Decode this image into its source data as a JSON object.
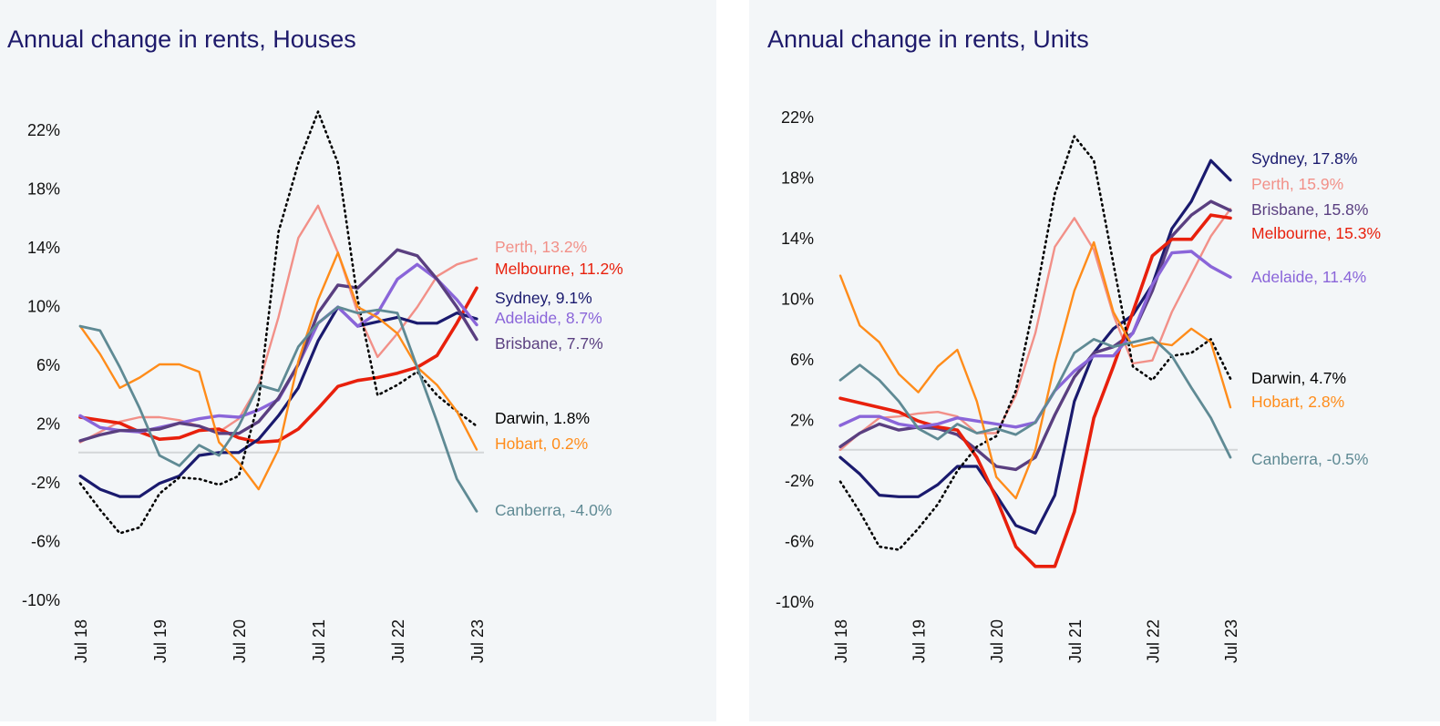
{
  "chart_data": [
    {
      "type": "line",
      "title": "Annual change in rents, Houses",
      "xlabel": "",
      "ylabel": "",
      "ylim": [
        -10,
        22
      ],
      "y_ticks": [
        "22%",
        "18%",
        "14%",
        "10%",
        "6%",
        "2%",
        "-2%",
        "-6%",
        "-10%"
      ],
      "y_tick_values": [
        22,
        18,
        14,
        10,
        6,
        2,
        -2,
        -6,
        -10
      ],
      "x_ticks": [
        "Jul 18",
        "Jul 19",
        "Jul 20",
        "Jul 21",
        "Jul 22",
        "Jul 23"
      ],
      "x_note": "quarterly from Jul 18 to Jul 23",
      "series": [
        {
          "name": "Perth",
          "label": "Perth, 13.2%",
          "color": "#f29088",
          "values": [
            0.7,
            1.4,
            2.1,
            2.4,
            2.4,
            2.2,
            1.8,
            1.4,
            2.3,
            4.6,
            9.2,
            14.6,
            16.8,
            13.6,
            9.5,
            6.5,
            8.1,
            9.9,
            12.0,
            12.8,
            13.2
          ]
        },
        {
          "name": "Melbourne",
          "label": "Melbourne, 11.2%",
          "color": "#e8200c",
          "values": [
            2.4,
            2.2,
            2.0,
            1.4,
            0.9,
            1.0,
            1.5,
            1.6,
            1.0,
            0.7,
            0.8,
            1.6,
            3.0,
            4.5,
            4.9,
            5.1,
            5.4,
            5.8,
            6.6,
            8.8,
            11.2
          ]
        },
        {
          "name": "Sydney",
          "label": "Sydney, 9.1%",
          "color": "#1a1a6e",
          "values": [
            -1.6,
            -2.5,
            -3.0,
            -3.0,
            -2.1,
            -1.6,
            -0.2,
            0,
            0,
            0.9,
            2.5,
            4.4,
            7.6,
            9.9,
            8.6,
            8.9,
            9.2,
            8.8,
            8.8,
            9.5,
            9.1
          ]
        },
        {
          "name": "Adelaide",
          "label": "Adelaide, 8.7%",
          "color": "#8a65d9",
          "values": [
            2.5,
            1.7,
            1.5,
            1.4,
            1.7,
            2.0,
            2.3,
            2.5,
            2.4,
            2.9,
            3.6,
            6.0,
            8.8,
            9.9,
            8.6,
            9.5,
            11.8,
            12.8,
            11.8,
            10.4,
            8.7
          ]
        },
        {
          "name": "Brisbane",
          "label": "Brisbane, 7.7%",
          "color": "#5a3f80",
          "values": [
            0.8,
            1.2,
            1.5,
            1.5,
            1.6,
            2.0,
            1.8,
            1.3,
            1.3,
            2.1,
            3.7,
            6.0,
            9.5,
            11.4,
            11.2,
            12.5,
            13.8,
            13.4,
            11.8,
            9.9,
            7.7
          ]
        },
        {
          "name": "Darwin",
          "label": "Darwin, 1.8%",
          "color": "#000000",
          "dotted": true,
          "values": [
            -2.1,
            -3.9,
            -5.5,
            -5.1,
            -2.8,
            -1.7,
            -1.8,
            -2.2,
            -1.6,
            3.5,
            15.0,
            19.7,
            23.2,
            19.7,
            10.4,
            3.9,
            4.6,
            5.5,
            3.9,
            2.8,
            1.8
          ]
        },
        {
          "name": "Hobart",
          "label": "Hobart, 0.2%",
          "color": "#ff8c1a",
          "values": [
            8.6,
            6.7,
            4.4,
            5.1,
            6.0,
            6.0,
            5.5,
            0.7,
            -0.7,
            -2.5,
            0.2,
            6.2,
            10.4,
            13.6,
            9.9,
            9.2,
            8.1,
            5.8,
            4.6,
            2.8,
            0.2
          ]
        },
        {
          "name": "Canberra",
          "label": "Canberra, -4.0%",
          "color": "#5f8a94",
          "values": [
            8.6,
            8.3,
            5.8,
            3.0,
            -0.2,
            -0.9,
            0.5,
            -0.2,
            1.8,
            4.6,
            4.2,
            7.2,
            8.8,
            9.9,
            9.5,
            9.7,
            9.5,
            5.8,
            2.1,
            -1.8,
            -4.0
          ]
        }
      ]
    },
    {
      "type": "line",
      "title": "Annual change in rents, Units",
      "xlabel": "",
      "ylabel": "",
      "ylim": [
        -10,
        22
      ],
      "y_ticks": [
        "22%",
        "18%",
        "14%",
        "10%",
        "6%",
        "2%",
        "-2%",
        "-6%",
        "-10%"
      ],
      "y_tick_values": [
        22,
        18,
        14,
        10,
        6,
        2,
        -2,
        -6,
        -10
      ],
      "x_ticks": [
        "Jul 18",
        "Jul 19",
        "Jul 20",
        "Jul 21",
        "Jul 22",
        "Jul 23"
      ],
      "x_note": "quarterly from Jul 18 to Jul 23",
      "series": [
        {
          "name": "Sydney",
          "label": "Sydney, 17.8%",
          "color": "#1a1a6e",
          "values": [
            -0.5,
            -1.6,
            -3.0,
            -3.1,
            -3.1,
            -2.3,
            -1.1,
            -1.1,
            -3.0,
            -5.0,
            -5.5,
            -3.0,
            3.2,
            6.4,
            8.0,
            8.9,
            10.9,
            14.6,
            16.4,
            19.1,
            17.8
          ]
        },
        {
          "name": "Perth",
          "label": "Perth, 15.9%",
          "color": "#f29088",
          "values": [
            0,
            1.1,
            2.1,
            2.2,
            2.4,
            2.5,
            2.2,
            1.1,
            1.1,
            3.6,
            7.7,
            13.4,
            15.3,
            13.2,
            8.9,
            5.7,
            5.9,
            9.1,
            11.6,
            14.1,
            15.9
          ]
        },
        {
          "name": "Brisbane",
          "label": "Brisbane, 15.8%",
          "color": "#5a3f80",
          "values": [
            0.2,
            1.1,
            1.7,
            1.3,
            1.5,
            1.4,
            1.0,
            0,
            -1.1,
            -1.3,
            -0.5,
            2.3,
            4.8,
            6.4,
            6.8,
            7.7,
            10.5,
            14.1,
            15.5,
            16.4,
            15.8
          ]
        },
        {
          "name": "Melbourne",
          "label": "Melbourne, 15.3%",
          "color": "#e8200c",
          "values": [
            3.4,
            3.1,
            2.8,
            2.5,
            1.9,
            1.5,
            1.3,
            -0.5,
            -3.2,
            -6.4,
            -7.7,
            -7.7,
            -4.1,
            2.1,
            5.5,
            9.1,
            12.8,
            13.9,
            13.9,
            15.5,
            15.3
          ]
        },
        {
          "name": "Adelaide",
          "label": "Adelaide, 11.4%",
          "color": "#8a65d9",
          "values": [
            1.6,
            2.2,
            2.2,
            1.7,
            1.5,
            1.7,
            2.1,
            1.9,
            1.7,
            1.5,
            1.8,
            3.9,
            5.2,
            6.2,
            6.2,
            7.7,
            10.9,
            13.0,
            13.1,
            12.1,
            11.4
          ]
        },
        {
          "name": "Darwin",
          "label": "Darwin, 4.7%",
          "color": "#000000",
          "dotted": true,
          "values": [
            -2.1,
            -4.1,
            -6.4,
            -6.6,
            -5.2,
            -3.6,
            -1.4,
            0.2,
            0.9,
            3.9,
            10.0,
            16.9,
            20.7,
            19.1,
            12.3,
            5.5,
            4.6,
            6.2,
            6.4,
            7.3,
            4.7
          ]
        },
        {
          "name": "Hobart",
          "label": "Hobart, 2.8%",
          "color": "#ff8c1a",
          "values": [
            11.5,
            8.2,
            7.1,
            5.0,
            3.8,
            5.5,
            6.6,
            3.2,
            -1.8,
            -3.2,
            0,
            5.7,
            10.5,
            13.7,
            9.1,
            6.8,
            7.1,
            6.9,
            8.0,
            7.1,
            2.8
          ]
        },
        {
          "name": "Canberra",
          "label": "Canberra, -0.5%",
          "color": "#5f8a94",
          "values": [
            4.6,
            5.6,
            4.6,
            3.2,
            1.4,
            0.7,
            1.7,
            1.1,
            1.4,
            1.0,
            1.8,
            3.9,
            6.4,
            7.3,
            6.8,
            7.1,
            7.4,
            6.2,
            4.1,
            2.1,
            -0.5
          ]
        }
      ]
    }
  ]
}
